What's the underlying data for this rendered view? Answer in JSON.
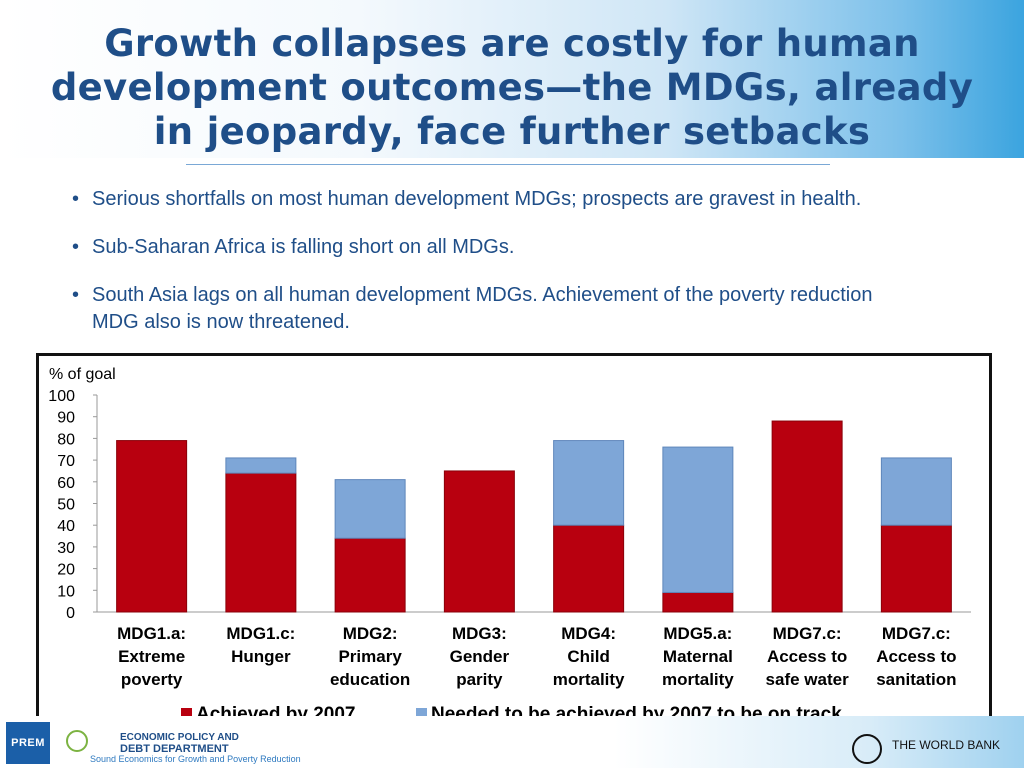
{
  "slide": {
    "title_lines": [
      "Growth collapses are costly for human",
      "development outcomes—the MDGs, already",
      "in jeopardy, face further setbacks"
    ],
    "bullets": [
      "Serious shortfalls on most human development MDGs; prospects are gravest in health.",
      "Sub-Saharan Africa is falling short on all MDGs.",
      "South Asia lags on all human development MDGs.  Achievement of the poverty reduction MDG also is now threatened."
    ],
    "bullet_symbol": "•"
  },
  "chart_data": {
    "type": "bar",
    "stacked": true,
    "ylabel": "% of goal",
    "ylim": [
      0,
      100
    ],
    "yticks": [
      0,
      10,
      20,
      30,
      40,
      50,
      60,
      70,
      80,
      90,
      100
    ],
    "grid": false,
    "legend_position": "bottom",
    "categories": [
      [
        "MDG1.a:",
        "Extreme",
        "poverty"
      ],
      [
        "MDG1.c:",
        "Hunger"
      ],
      [
        "MDG2:",
        "Primary",
        "education"
      ],
      [
        "MDG3:",
        "Gender",
        "parity"
      ],
      [
        "MDG4:",
        "Child",
        "mortality"
      ],
      [
        "MDG5.a:",
        "Maternal",
        "mortality"
      ],
      [
        "MDG7.c:",
        "Access to",
        "safe water"
      ],
      [
        "MDG7.c:",
        "Access to",
        "sanitation"
      ]
    ],
    "series": [
      {
        "name": "Achieved by 2007",
        "color": "#b8000f",
        "values": [
          79,
          64,
          34,
          65,
          40,
          9,
          88,
          40
        ]
      },
      {
        "name": "Needed to be achieved by 2007 to be on track",
        "color": "#7ea6d7",
        "values": [
          0,
          7,
          27,
          0,
          39,
          67,
          0,
          31
        ]
      }
    ]
  },
  "footer": {
    "left_logo_text": "PREM",
    "department_lines": [
      "ECONOMIC POLICY AND",
      "DEBT DEPARTMENT"
    ],
    "tagline": "Sound Economics for Growth and Poverty Reduction",
    "right_label": "THE WORLD BANK",
    "brand_color": "#1f4e88"
  }
}
